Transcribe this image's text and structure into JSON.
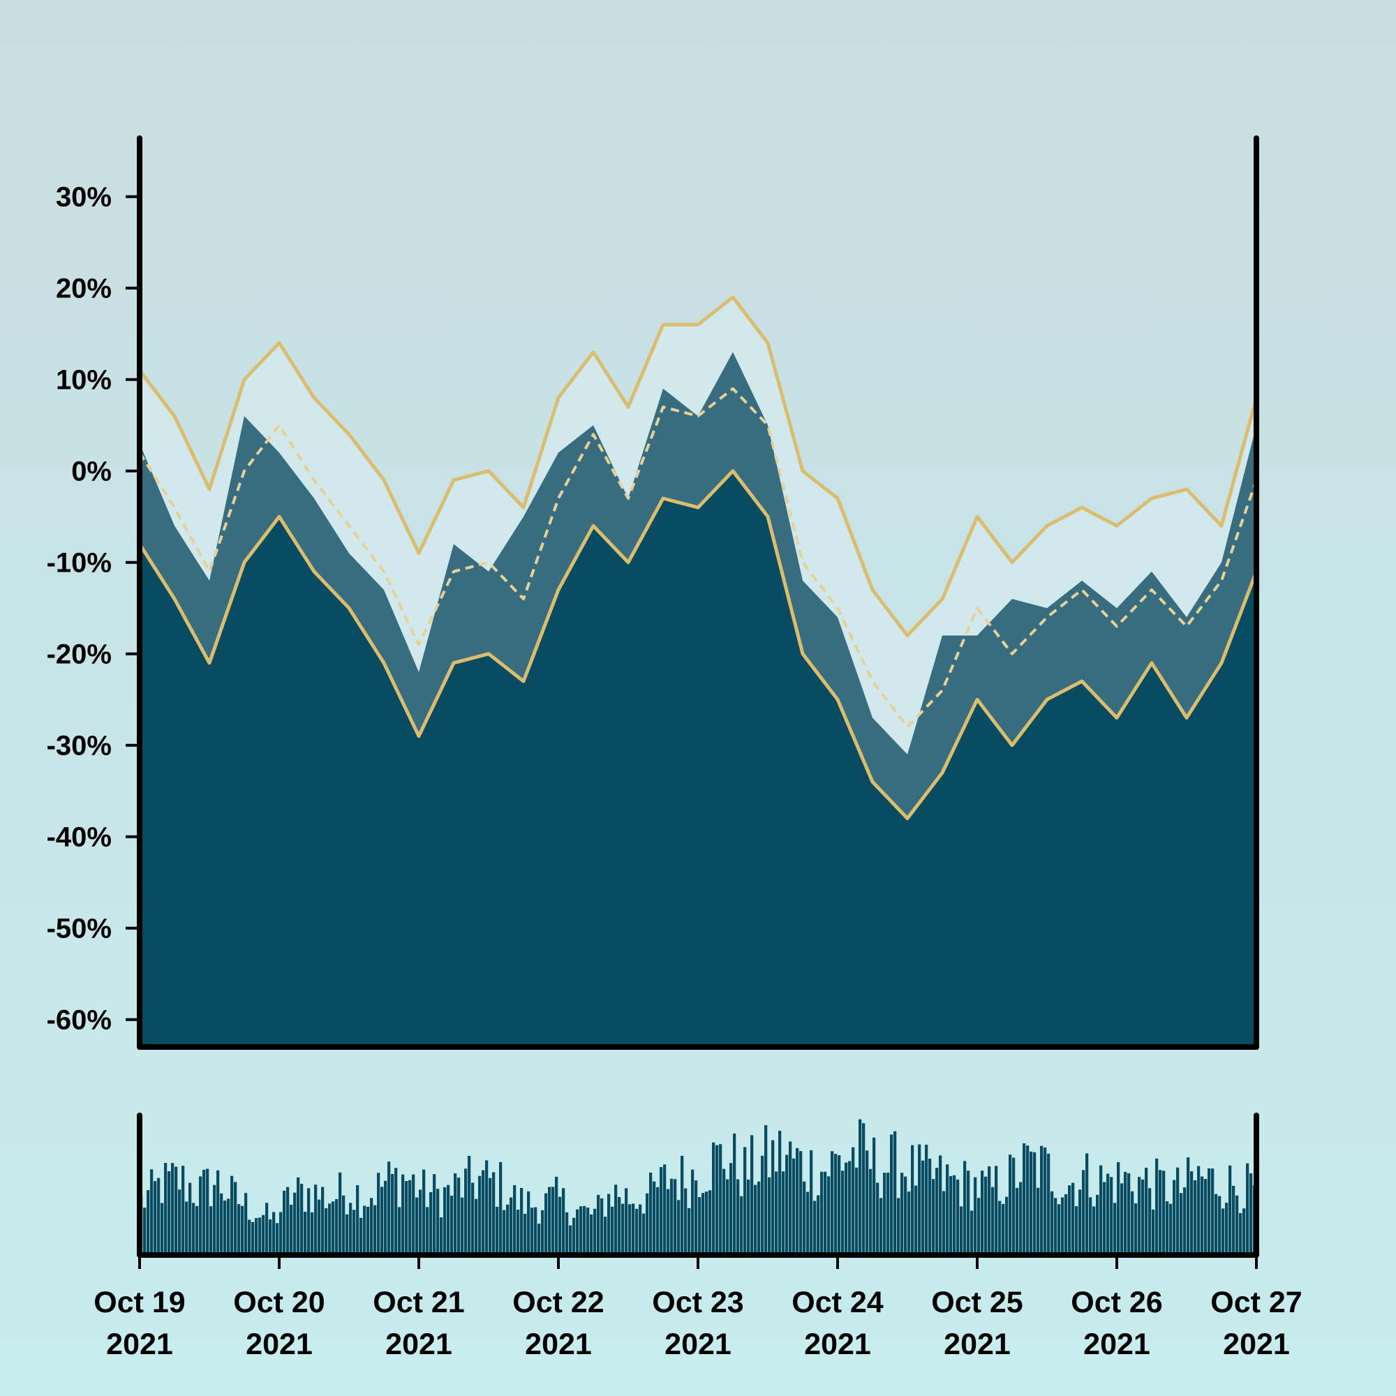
{
  "chart_data": [
    {
      "type": "area",
      "title": "",
      "xlabel": "",
      "ylabel": "",
      "x_range": [
        "2021-10-19",
        "2021-10-27"
      ],
      "ylim": [
        -0.63,
        0.37
      ],
      "y_ticks": [
        0.3,
        0.2,
        0.1,
        0,
        -0.1,
        -0.2,
        -0.3,
        -0.4,
        -0.5,
        -0.6
      ],
      "y_tick_labels": [
        "30%",
        "20%",
        "10%",
        "0%",
        "-10%",
        "-20%",
        "-30%",
        "-40%",
        "-50%",
        "-60%"
      ],
      "x_ticks": [
        {
          "line1": "Oct 19",
          "line2": "2021"
        },
        {
          "line1": "Oct 20",
          "line2": "2021"
        },
        {
          "line1": "Oct 21",
          "line2": "2021"
        },
        {
          "line1": "Oct 22",
          "line2": "2021"
        },
        {
          "line1": "Oct 23",
          "line2": "2021"
        },
        {
          "line1": "Oct 24",
          "line2": "2021"
        },
        {
          "line1": "Oct 25",
          "line2": "2021"
        },
        {
          "line1": "Oct 26",
          "line2": "2021"
        },
        {
          "line1": "Oct 27",
          "line2": "2021"
        }
      ],
      "grid": false,
      "series": [
        {
          "role": "value",
          "style": "area",
          "x": [
            "2021-10-19T00:00",
            "2021-10-19T06:00",
            "2021-10-19T12:00",
            "2021-10-19T18:00",
            "2021-10-20T00:00",
            "2021-10-20T06:00",
            "2021-10-20T12:00",
            "2021-10-20T18:00",
            "2021-10-21T00:00",
            "2021-10-21T06:00",
            "2021-10-21T12:00",
            "2021-10-21T18:00",
            "2021-10-22T00:00",
            "2021-10-22T06:00",
            "2021-10-22T12:00",
            "2021-10-22T18:00",
            "2021-10-23T00:00",
            "2021-10-23T06:00",
            "2021-10-23T12:00",
            "2021-10-23T18:00",
            "2021-10-24T00:00",
            "2021-10-24T06:00",
            "2021-10-24T12:00",
            "2021-10-24T18:00",
            "2021-10-25T00:00",
            "2021-10-25T06:00",
            "2021-10-25T12:00",
            "2021-10-25T18:00",
            "2021-10-26T00:00",
            "2021-10-26T06:00",
            "2021-10-26T12:00",
            "2021-10-26T18:00",
            "2021-10-27T00:00"
          ],
          "values": [
            0.03,
            -0.06,
            -0.12,
            0.06,
            0.02,
            -0.03,
            -0.09,
            -0.13,
            -0.22,
            -0.08,
            -0.11,
            -0.05,
            0.02,
            0.05,
            -0.03,
            0.09,
            0.06,
            0.13,
            0.05,
            -0.12,
            -0.16,
            -0.27,
            -0.31,
            -0.18,
            -0.18,
            -0.14,
            -0.15,
            -0.12,
            -0.15,
            -0.11,
            -0.16,
            -0.1,
            0.05
          ]
        },
        {
          "role": "moving-average",
          "style": "dashed",
          "x": [
            "2021-10-19T00:00",
            "2021-10-19T06:00",
            "2021-10-19T12:00",
            "2021-10-19T18:00",
            "2021-10-20T00:00",
            "2021-10-20T06:00",
            "2021-10-20T12:00",
            "2021-10-20T18:00",
            "2021-10-21T00:00",
            "2021-10-21T06:00",
            "2021-10-21T12:00",
            "2021-10-21T18:00",
            "2021-10-22T00:00",
            "2021-10-22T06:00",
            "2021-10-22T12:00",
            "2021-10-22T18:00",
            "2021-10-23T00:00",
            "2021-10-23T06:00",
            "2021-10-23T12:00",
            "2021-10-23T18:00",
            "2021-10-24T00:00",
            "2021-10-24T06:00",
            "2021-10-24T12:00",
            "2021-10-24T18:00",
            "2021-10-25T00:00",
            "2021-10-25T06:00",
            "2021-10-25T12:00",
            "2021-10-25T18:00",
            "2021-10-26T00:00",
            "2021-10-26T06:00",
            "2021-10-26T12:00",
            "2021-10-26T18:00",
            "2021-10-27T00:00"
          ],
          "values": [
            0.02,
            -0.04,
            -0.11,
            0.0,
            0.05,
            -0.01,
            -0.06,
            -0.11,
            -0.19,
            -0.11,
            -0.1,
            -0.14,
            -0.03,
            0.04,
            -0.03,
            0.07,
            0.06,
            0.09,
            0.05,
            -0.1,
            -0.15,
            -0.23,
            -0.28,
            -0.24,
            -0.15,
            -0.2,
            -0.16,
            -0.13,
            -0.17,
            -0.13,
            -0.17,
            -0.12,
            -0.01
          ]
        },
        {
          "role": "upper-band",
          "style": "line",
          "x": [
            "2021-10-19T00:00",
            "2021-10-19T06:00",
            "2021-10-19T12:00",
            "2021-10-19T18:00",
            "2021-10-20T00:00",
            "2021-10-20T06:00",
            "2021-10-20T12:00",
            "2021-10-20T18:00",
            "2021-10-21T00:00",
            "2021-10-21T06:00",
            "2021-10-21T12:00",
            "2021-10-21T18:00",
            "2021-10-22T00:00",
            "2021-10-22T06:00",
            "2021-10-22T12:00",
            "2021-10-22T18:00",
            "2021-10-23T00:00",
            "2021-10-23T06:00",
            "2021-10-23T12:00",
            "2021-10-23T18:00",
            "2021-10-24T00:00",
            "2021-10-24T06:00",
            "2021-10-24T12:00",
            "2021-10-24T18:00",
            "2021-10-25T00:00",
            "2021-10-25T06:00",
            "2021-10-25T12:00",
            "2021-10-25T18:00",
            "2021-10-26T00:00",
            "2021-10-26T06:00",
            "2021-10-26T12:00",
            "2021-10-26T18:00",
            "2021-10-27T00:00"
          ],
          "values": [
            0.11,
            0.06,
            -0.02,
            0.1,
            0.14,
            0.08,
            0.04,
            -0.01,
            -0.09,
            -0.01,
            0.0,
            -0.04,
            0.08,
            0.13,
            0.07,
            0.16,
            0.16,
            0.19,
            0.14,
            0.0,
            -0.03,
            -0.13,
            -0.18,
            -0.14,
            -0.05,
            -0.1,
            -0.06,
            -0.04,
            -0.06,
            -0.03,
            -0.02,
            -0.06,
            0.08
          ]
        },
        {
          "role": "lower-band",
          "style": "line",
          "x": [
            "2021-10-19T00:00",
            "2021-10-19T06:00",
            "2021-10-19T12:00",
            "2021-10-19T18:00",
            "2021-10-20T00:00",
            "2021-10-20T06:00",
            "2021-10-20T12:00",
            "2021-10-20T18:00",
            "2021-10-21T00:00",
            "2021-10-21T06:00",
            "2021-10-21T12:00",
            "2021-10-21T18:00",
            "2021-10-22T00:00",
            "2021-10-22T06:00",
            "2021-10-22T12:00",
            "2021-10-22T18:00",
            "2021-10-23T00:00",
            "2021-10-23T06:00",
            "2021-10-23T12:00",
            "2021-10-23T18:00",
            "2021-10-24T00:00",
            "2021-10-24T06:00",
            "2021-10-24T12:00",
            "2021-10-24T18:00",
            "2021-10-25T00:00",
            "2021-10-25T06:00",
            "2021-10-25T12:00",
            "2021-10-25T18:00",
            "2021-10-26T00:00",
            "2021-10-26T06:00",
            "2021-10-26T12:00",
            "2021-10-26T18:00",
            "2021-10-27T00:00"
          ],
          "values": [
            -0.08,
            -0.14,
            -0.21,
            -0.1,
            -0.05,
            -0.11,
            -0.15,
            -0.21,
            -0.29,
            -0.21,
            -0.2,
            -0.23,
            -0.13,
            -0.06,
            -0.1,
            -0.03,
            -0.04,
            0.0,
            -0.05,
            -0.2,
            -0.25,
            -0.34,
            -0.38,
            -0.33,
            -0.25,
            -0.3,
            -0.25,
            -0.23,
            -0.27,
            -0.21,
            -0.27,
            -0.21,
            -0.11
          ]
        }
      ]
    },
    {
      "type": "bar",
      "role": "volume",
      "x_range": [
        "2021-10-19",
        "2021-10-27"
      ],
      "y_axis_labels": false,
      "values": [
        0.42,
        0.55,
        0.6,
        0.5,
        0.58,
        0.45,
        0.35,
        0.28,
        0.48,
        0.5,
        0.45,
        0.52,
        0.46,
        0.58,
        0.62,
        0.5,
        0.48,
        0.55,
        0.6,
        0.56,
        0.42,
        0.4,
        0.45,
        0.36,
        0.32,
        0.5,
        0.45,
        0.48,
        0.62,
        0.6,
        0.72,
        0.78,
        0.66,
        0.75,
        0.8,
        0.72,
        0.66,
        0.75,
        0.82,
        0.7,
        0.72,
        0.66,
        0.62,
        0.58,
        0.56,
        0.52,
        0.6,
        0.72,
        0.68,
        0.55,
        0.62,
        0.58,
        0.6,
        0.58,
        0.55,
        0.52,
        0.62,
        0.58,
        0.55,
        0.52
      ]
    }
  ]
}
